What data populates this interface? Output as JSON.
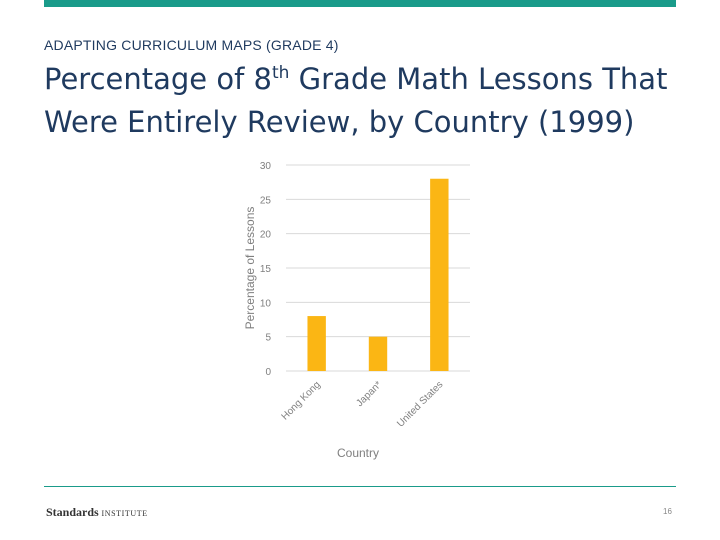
{
  "header": {
    "eyebrow": "ADAPTING CURRICULUM MAPS (GRADE 4)",
    "title_pre": "Percentage of 8",
    "title_sup": "th",
    "title_post": " Grade Math Lessons That Were Entirely Review, by Country (1999)"
  },
  "chart_data": {
    "type": "bar",
    "categories": [
      "Hong Kong",
      "Japan*",
      "United States"
    ],
    "values": [
      8,
      5,
      28
    ],
    "xlabel": "Country",
    "ylabel": "Percentage of Lessons",
    "ylim": [
      0,
      30
    ],
    "yticks": [
      0,
      5,
      10,
      15,
      20,
      25,
      30
    ],
    "grid": true,
    "legend": "none",
    "bar_color": "#fbb614",
    "grid_color": "#d9d9d9"
  },
  "footer": {
    "logo_strong": "Standards",
    "logo_small": "INSTITUTE",
    "page_number": "16"
  }
}
